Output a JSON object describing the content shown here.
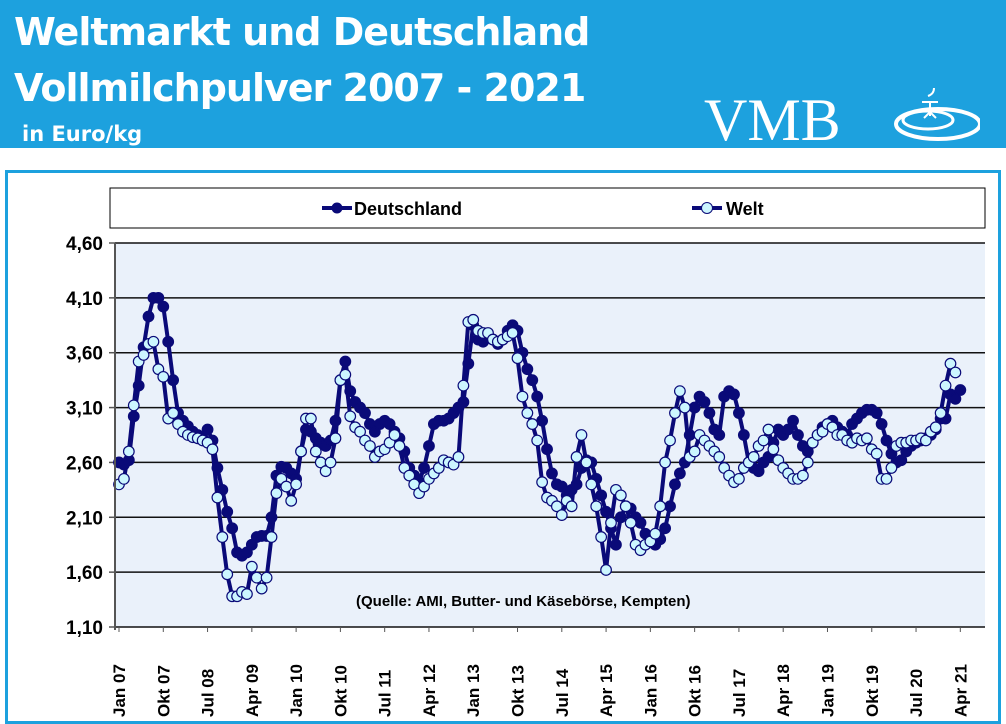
{
  "header": {
    "title_line1": "Weltmarkt und Deutschland",
    "title_line2": "Vollmilchpulver 2007 - 2021",
    "unit": "in Euro/kg",
    "logo_text": "VMB",
    "background_color": "#1da1de"
  },
  "chart_data": {
    "type": "line",
    "ylim": [
      1.1,
      4.6
    ],
    "yticks": [
      "1,10",
      "1,60",
      "2,10",
      "2,60",
      "3,10",
      "3,60",
      "4,10",
      "4,60"
    ],
    "ytick_values": [
      1.1,
      1.6,
      2.1,
      2.6,
      3.1,
      3.6,
      4.1,
      4.6
    ],
    "xticks": [
      "Jan 07",
      "Okt 07",
      "Jul 08",
      "Apr 09",
      "Jan 10",
      "Okt 10",
      "Jul 11",
      "Apr 12",
      "Jan 13",
      "Okt 13",
      "Jul 14",
      "Apr 15",
      "Jan 16",
      "Okt 16",
      "Jul 17",
      "Apr 18",
      "Jan 19",
      "Okt 19",
      "Jul 20",
      "Apr 21"
    ],
    "x_start": "Jan 07",
    "x_interval": "monthly",
    "grid": true,
    "legend_position": "top",
    "annotation": "(Quelle: AMI, Butter- und Käsebörse, Kempten)",
    "plot_background": "#eaf1fa",
    "series": [
      {
        "name": "Deutschland",
        "color": "#0a0a78",
        "marker_fill": "#0a0a78",
        "values": [
          2.6,
          2.58,
          2.62,
          3.02,
          3.3,
          3.65,
          3.93,
          4.1,
          4.1,
          4.02,
          3.7,
          3.35,
          3.05,
          2.98,
          2.93,
          2.88,
          2.85,
          2.82,
          2.9,
          2.8,
          2.55,
          2.35,
          2.15,
          2.0,
          1.78,
          1.75,
          1.78,
          1.85,
          1.92,
          1.93,
          1.93,
          2.1,
          2.48,
          2.56,
          2.55,
          2.5,
          2.45,
          2.7,
          2.9,
          2.88,
          2.82,
          2.78,
          2.75,
          2.8,
          2.98,
          3.35,
          3.52,
          3.25,
          3.15,
          3.1,
          3.05,
          2.95,
          2.88,
          2.95,
          2.98,
          2.95,
          2.88,
          2.82,
          2.7,
          2.55,
          2.48,
          2.42,
          2.55,
          2.75,
          2.95,
          2.98,
          2.98,
          3.0,
          3.05,
          3.1,
          3.15,
          3.5,
          3.85,
          3.72,
          3.7,
          3.75,
          3.72,
          3.68,
          3.72,
          3.8,
          3.85,
          3.8,
          3.6,
          3.45,
          3.35,
          3.2,
          2.98,
          2.72,
          2.5,
          2.4,
          2.38,
          2.3,
          2.35,
          2.4,
          2.55,
          2.62,
          2.6,
          2.45,
          2.3,
          2.15,
          2.0,
          1.85,
          2.1,
          2.2,
          2.18,
          2.1,
          2.05,
          1.95,
          1.88,
          1.85,
          1.9,
          2.0,
          2.2,
          2.4,
          2.5,
          2.6,
          2.85,
          3.1,
          3.2,
          3.15,
          3.05,
          2.9,
          2.85,
          3.2,
          3.25,
          3.22,
          3.05,
          2.85,
          2.6,
          2.55,
          2.52,
          2.6,
          2.65,
          2.78,
          2.9,
          2.85,
          2.9,
          2.98,
          2.85,
          2.75,
          2.7,
          2.78,
          2.85,
          2.92,
          2.95,
          2.98,
          2.92,
          2.88,
          2.85,
          2.95,
          3.0,
          3.05,
          3.08,
          3.08,
          3.05,
          2.95,
          2.8,
          2.68,
          2.6,
          2.62,
          2.7,
          2.75,
          2.78,
          2.8,
          2.82,
          2.85,
          2.9,
          3.0,
          3.0,
          3.22,
          3.18,
          3.26
        ]
      },
      {
        "name": "Welt",
        "color": "#0a0a78",
        "marker_fill": "#ccf6ff",
        "values": [
          2.4,
          2.45,
          2.7,
          3.12,
          3.52,
          3.58,
          3.68,
          3.7,
          3.45,
          3.38,
          3.0,
          3.05,
          2.95,
          2.88,
          2.85,
          2.83,
          2.82,
          2.8,
          2.78,
          2.72,
          2.28,
          1.92,
          1.58,
          1.38,
          1.38,
          1.42,
          1.4,
          1.65,
          1.55,
          1.45,
          1.55,
          1.92,
          2.32,
          2.45,
          2.38,
          2.25,
          2.4,
          2.7,
          3.0,
          3.0,
          2.7,
          2.6,
          2.52,
          2.6,
          2.82,
          3.35,
          3.4,
          3.02,
          2.92,
          2.88,
          2.8,
          2.75,
          2.65,
          2.7,
          2.72,
          2.78,
          2.85,
          2.75,
          2.55,
          2.48,
          2.4,
          2.32,
          2.38,
          2.45,
          2.5,
          2.55,
          2.62,
          2.6,
          2.58,
          2.65,
          3.3,
          3.88,
          3.9,
          3.8,
          3.78,
          3.78,
          3.72,
          3.7,
          3.72,
          3.75,
          3.78,
          3.55,
          3.2,
          3.05,
          2.95,
          2.8,
          2.42,
          2.28,
          2.25,
          2.2,
          2.12,
          2.25,
          2.2,
          2.65,
          2.85,
          2.6,
          2.4,
          2.2,
          1.92,
          1.62,
          2.05,
          2.35,
          2.3,
          2.2,
          2.05,
          1.85,
          1.8,
          1.85,
          1.88,
          1.95,
          2.2,
          2.6,
          2.8,
          3.05,
          3.25,
          3.1,
          2.65,
          2.7,
          2.85,
          2.8,
          2.75,
          2.7,
          2.65,
          2.55,
          2.48,
          2.42,
          2.45,
          2.55,
          2.6,
          2.65,
          2.75,
          2.8,
          2.9,
          2.72,
          2.62,
          2.55,
          2.5,
          2.45,
          2.45,
          2.48,
          2.6,
          2.78,
          2.85,
          2.88,
          2.95,
          2.92,
          2.85,
          2.85,
          2.8,
          2.78,
          2.82,
          2.8,
          2.82,
          2.72,
          2.68,
          2.45,
          2.45,
          2.55,
          2.75,
          2.78,
          2.78,
          2.8,
          2.8,
          2.82,
          2.8,
          2.88,
          2.92,
          3.05,
          3.3,
          3.5,
          3.42
        ]
      }
    ]
  }
}
